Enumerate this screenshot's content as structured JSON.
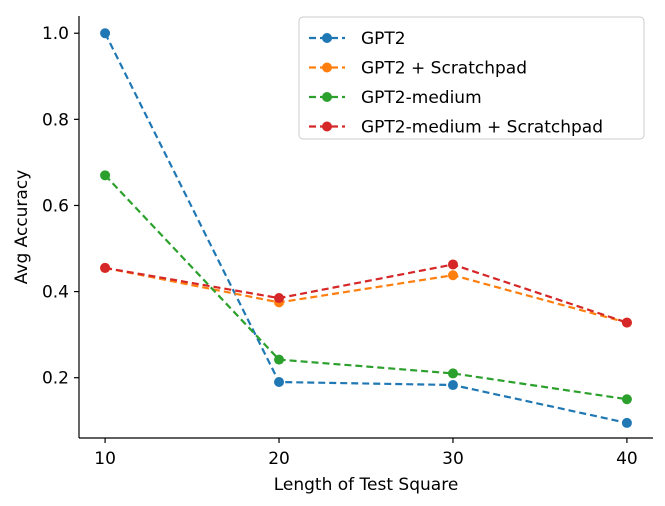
{
  "chart_data": {
    "type": "line",
    "title": "",
    "xlabel": "Length of Test Square",
    "ylabel": "Avg Accuracy",
    "x": [
      10,
      20,
      30,
      40
    ],
    "xticks": [
      10,
      20,
      30,
      40
    ],
    "yticks": [
      0.2,
      0.4,
      0.6,
      0.8,
      1.0
    ],
    "ytick_labels": [
      "0.2",
      "0.4",
      "0.6",
      "0.8",
      "1.0"
    ],
    "xlim": [
      8.5,
      41.5
    ],
    "ylim": [
      0.06,
      1.04
    ],
    "grid": false,
    "legend_position": "top-right",
    "series": [
      {
        "name": "GPT2",
        "color": "#1f77b4",
        "values": [
          1.0,
          0.19,
          0.183,
          0.095
        ]
      },
      {
        "name": "GPT2 + Scratchpad",
        "color": "#ff7f0e",
        "values": [
          0.455,
          0.375,
          0.438,
          0.328
        ]
      },
      {
        "name": "GPT2-medium",
        "color": "#2ca02c",
        "values": [
          0.67,
          0.242,
          0.21,
          0.15
        ]
      },
      {
        "name": "GPT2-medium + Scratchpad",
        "color": "#d62728",
        "values": [
          0.455,
          0.385,
          0.463,
          0.328
        ]
      }
    ]
  }
}
